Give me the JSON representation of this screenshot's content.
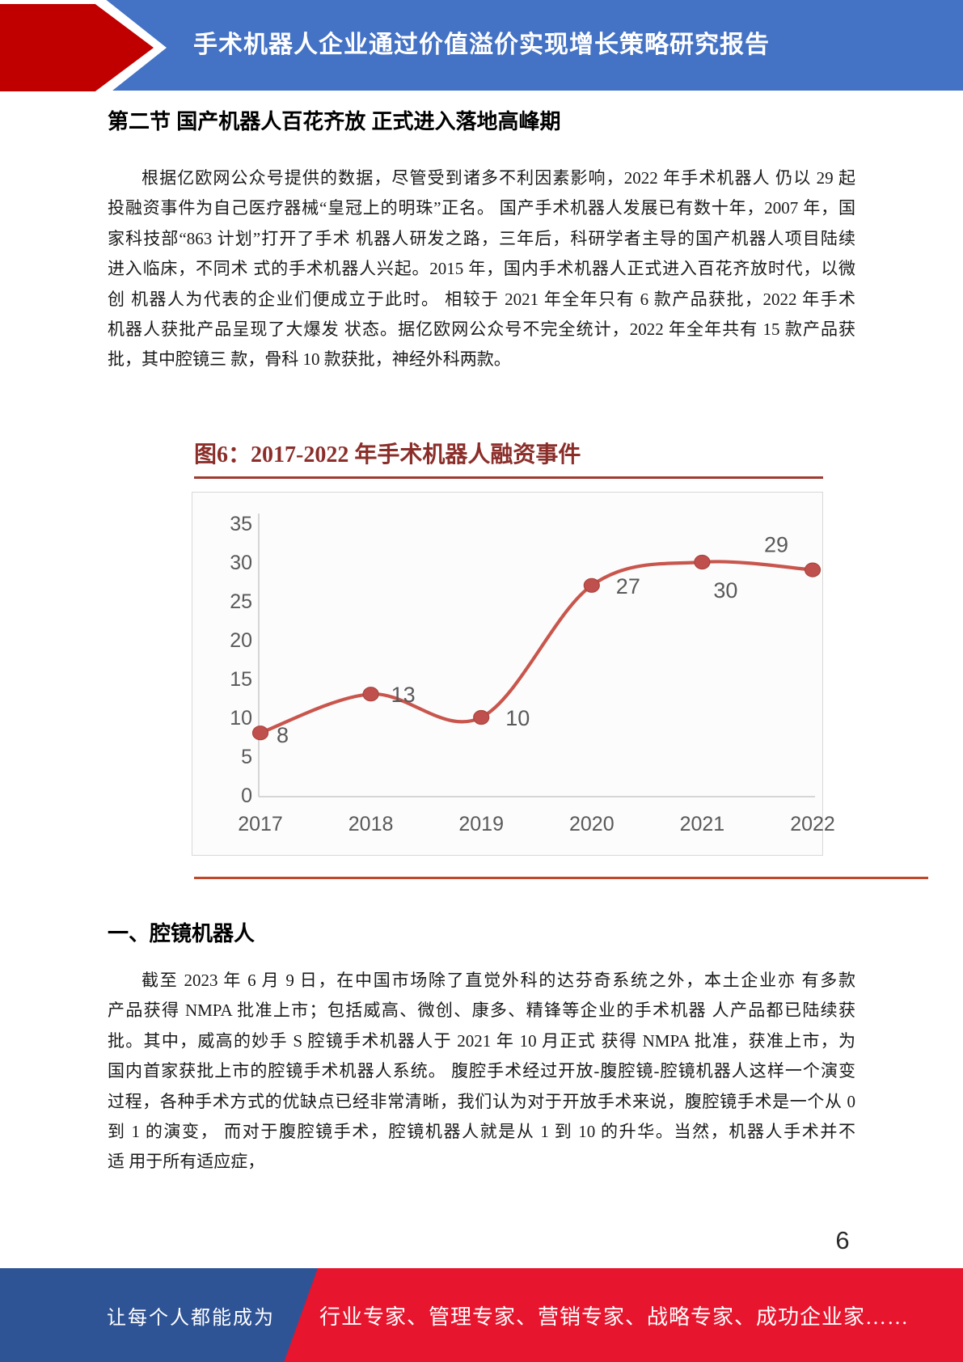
{
  "header": {
    "title": "手术机器人企业通过价值溢价实现增长策略研究报告"
  },
  "section1": {
    "heading": "第二节 国产机器人百花齐放 正式进入落地高峰期",
    "paragraph_lines": [
      "根据亿欧网公众号提供的数据，尽管受到诸多不利因素影响，2022 年手术机器人 仍以 29 起",
      "投融资事件为自己医疗器械“皇冠上的明珠”正名。 国产手术机器人发展已有数十年，2007 年，国",
      "家科技部“863 计划”打开了手术 机器人研发之路，三年后，科研学者主导的国产机器人项目陆续",
      "进入临床，不同术 式的手术机器人兴起。2015 年，国内手术机器人正式进入百花齐放时代，以微",
      "创 机器人为代表的企业们便成立于此时。 相较于 2021 年全年只有 6 款产品获批，2022 年手术",
      "机器人获批产品呈现了大爆发 状态。据亿欧网公众号不完全统计，2022 年全年共有 15 款产品获",
      "批，其中腔镜三 款，骨科 10 款获批，神经外科两款。"
    ]
  },
  "chart_data": {
    "type": "line",
    "title": "图6：2017-2022 年手术机器人融资事件",
    "categories": [
      "2017",
      "2018",
      "2019",
      "2020",
      "2021",
      "2022"
    ],
    "values": [
      8,
      13,
      10,
      27,
      30,
      29
    ],
    "yticks": [
      0,
      5,
      10,
      15,
      20,
      25,
      30,
      35
    ],
    "ylim": [
      0,
      35
    ],
    "xlabel": "",
    "ylabel": "",
    "grid": false,
    "legend": "none",
    "line_color": "#C8564D",
    "marker_color": "#C0504D",
    "marker_edge_color": "#A8453E",
    "axis_color": "#C9C9C9",
    "label_color": "#595959"
  },
  "section2": {
    "heading": "一、腔镜机器人",
    "paragraph_lines": [
      "截至 2023 年 6 月 9 日，在中国市场除了直觉外科的达芬奇系统之外，本土企业亦 有多款",
      "产品获得 NMPA 批准上市；包括威高、微创、康多、精锋等企业的手术机器 人产品都已陆续获",
      "批。其中，威高的妙手 S 腔镜手术机器人于 2021 年 10 月正式 获得 NMPA 批准，获准上市，为",
      "国内首家获批上市的腔镜手术机器人系统。 腹腔手术经过开放-腹腔镜-腔镜机器人这样一个演变",
      "过程，各种手术方式的优缺点已经非常清晰，我们认为对于开放手术来说，腹腔镜手术是一个从 0",
      "到 1 的演变， 而对于腹腔镜手术，腔镜机器人就是从 1 到 10 的升华。当然，机器人手术并不",
      "适 用于所有适应症，"
    ]
  },
  "page_number": "6",
  "footer": {
    "left_text": "让每个人都能成为",
    "right_text": "行业专家、管理专家、营销专家、战略专家、成功企业家……"
  },
  "colors": {
    "header_blue": "#4472C4",
    "arrow_red": "#C00000",
    "caption_dark_red": "#8B2E2A",
    "divider_orange_red": "#C2472A",
    "footer_red": "#E7152D",
    "footer_blue": "#2F5496"
  }
}
